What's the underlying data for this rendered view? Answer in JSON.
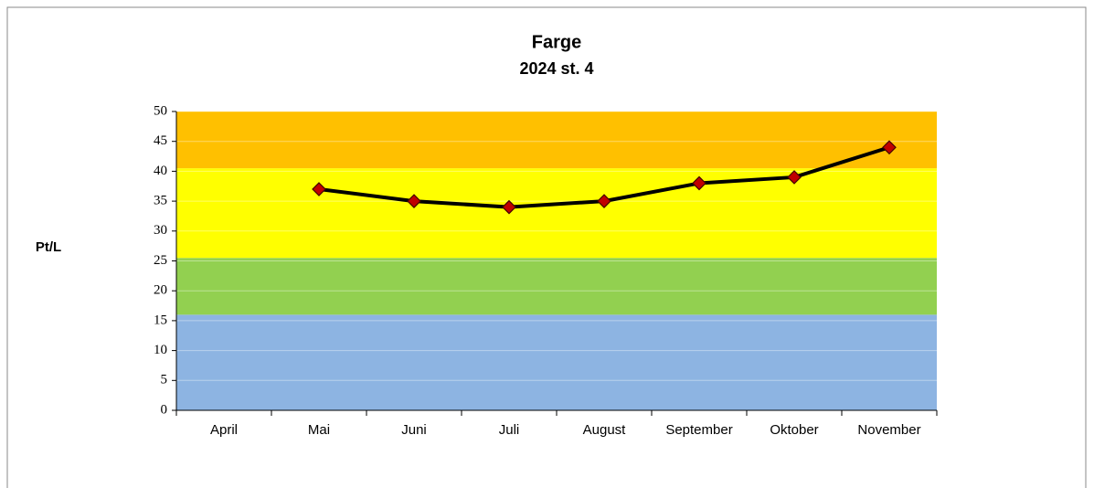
{
  "chart_data": {
    "type": "line",
    "title": "Farge",
    "subtitle": "2024 st. 4",
    "y_label": "Pt/L",
    "categories": [
      "April",
      "Mai",
      "Juni",
      "Juli",
      "August",
      "September",
      "Oktober",
      "November"
    ],
    "series": [
      {
        "name": "Farge",
        "color": "#000000",
        "marker_color": "#c00000",
        "values": [
          null,
          37,
          35,
          34,
          35,
          38,
          39,
          44
        ]
      }
    ],
    "ylim": [
      0,
      50
    ],
    "yticks": [
      0,
      5,
      10,
      15,
      20,
      25,
      30,
      35,
      40,
      45,
      50
    ],
    "grid": true,
    "bands": [
      {
        "from": 0,
        "to": 16,
        "color": "#8db4e2"
      },
      {
        "from": 16,
        "to": 25.5,
        "color": "#92d050"
      },
      {
        "from": 25.5,
        "to": 40.5,
        "color": "#ffff00"
      },
      {
        "from": 40.5,
        "to": 50,
        "color": "#ffc000"
      }
    ]
  }
}
